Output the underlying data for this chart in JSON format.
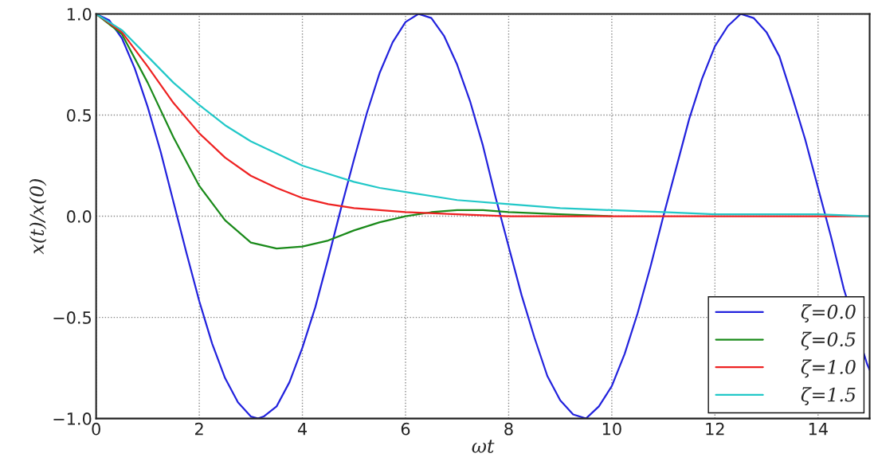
{
  "chart_data": {
    "type": "line",
    "xlabel": "ωt",
    "ylabel": "x(t)/x(0)",
    "xlim": [
      0,
      15
    ],
    "ylim": [
      -1.0,
      1.0
    ],
    "xticks": [
      0,
      2,
      4,
      6,
      8,
      10,
      12,
      14
    ],
    "yticks": [
      {
        "value": -1.0,
        "label": "−1.0"
      },
      {
        "value": -0.5,
        "label": "−0.5"
      },
      {
        "value": 0.0,
        "label": "0.0"
      },
      {
        "value": 0.5,
        "label": "0.5"
      },
      {
        "value": 1.0,
        "label": "1.0"
      }
    ],
    "grid": true,
    "legend": "bottom right",
    "line_style": "solid",
    "series": [
      {
        "name": "ζ=0.0",
        "color": "#2222dd",
        "x": [
          0,
          0.25,
          0.5,
          0.75,
          1,
          1.25,
          1.5,
          1.75,
          2,
          2.25,
          2.5,
          2.75,
          3,
          3.14,
          3.25,
          3.5,
          3.75,
          4,
          4.25,
          4.5,
          4.75,
          5,
          5.25,
          5.5,
          5.75,
          6,
          6.25,
          6.5,
          6.75,
          7,
          7.25,
          7.5,
          7.75,
          8,
          8.25,
          8.5,
          8.75,
          9,
          9.25,
          9.5,
          9.75,
          10,
          10.25,
          10.5,
          10.75,
          11,
          11.25,
          11.5,
          11.75,
          12,
          12.25,
          12.5,
          12.75,
          13,
          13.25,
          13.5,
          13.75,
          14,
          14.25,
          14.5,
          14.75,
          14.95,
          15
        ],
        "values": [
          1.0,
          0.97,
          0.88,
          0.73,
          0.54,
          0.32,
          0.07,
          -0.18,
          -0.42,
          -0.63,
          -0.8,
          -0.92,
          -0.99,
          -1.0,
          -0.99,
          -0.94,
          -0.82,
          -0.65,
          -0.45,
          -0.21,
          0.04,
          0.28,
          0.51,
          0.71,
          0.86,
          0.96,
          1.0,
          0.98,
          0.89,
          0.75,
          0.57,
          0.35,
          0.09,
          -0.15,
          -0.39,
          -0.6,
          -0.79,
          -0.91,
          -0.98,
          -1.0,
          -0.94,
          -0.84,
          -0.68,
          -0.48,
          -0.25,
          0.0,
          0.24,
          0.48,
          0.68,
          0.84,
          0.94,
          1.0,
          0.98,
          0.91,
          0.79,
          0.59,
          0.38,
          0.14,
          -0.1,
          -0.36,
          null,
          -0.73,
          -0.76
        ]
      },
      {
        "name": "ζ=0.5",
        "color": "#1a8a1a",
        "x": [
          0,
          0.5,
          1,
          1.5,
          2,
          2.5,
          3,
          3.5,
          4,
          4.5,
          5,
          5.5,
          6,
          6.5,
          7,
          7.5,
          8,
          9,
          10
        ],
        "values": [
          1.0,
          0.9,
          0.66,
          0.39,
          0.15,
          -0.02,
          -0.13,
          -0.16,
          -0.15,
          -0.12,
          -0.07,
          -0.03,
          0.0,
          0.02,
          0.03,
          0.03,
          0.02,
          0.01,
          0.0
        ]
      },
      {
        "name": "ζ=1.0",
        "color": "#ee2222",
        "x": [
          0,
          0.5,
          1,
          1.5,
          2,
          2.5,
          3,
          3.5,
          4,
          4.5,
          5,
          5.5,
          6,
          7,
          8,
          9,
          10,
          12,
          15
        ],
        "values": [
          1.0,
          0.91,
          0.74,
          0.56,
          0.41,
          0.29,
          0.2,
          0.14,
          0.09,
          0.06,
          0.04,
          0.03,
          0.02,
          0.01,
          0.0,
          0.0,
          0.0,
          0.0,
          0.0
        ]
      },
      {
        "name": "ζ=1.5",
        "color": "#22c8c8",
        "x": [
          0,
          0.5,
          1,
          1.5,
          2,
          2.5,
          3,
          3.5,
          4,
          4.5,
          5,
          5.5,
          6,
          7,
          8,
          9,
          10,
          11,
          12,
          13,
          14,
          15
        ],
        "values": [
          1.0,
          0.92,
          0.79,
          0.66,
          0.55,
          0.45,
          0.37,
          0.31,
          0.25,
          0.21,
          0.17,
          0.14,
          0.12,
          0.08,
          0.06,
          0.04,
          0.03,
          0.02,
          0.01,
          0.01,
          0.01,
          0.0
        ]
      }
    ]
  }
}
